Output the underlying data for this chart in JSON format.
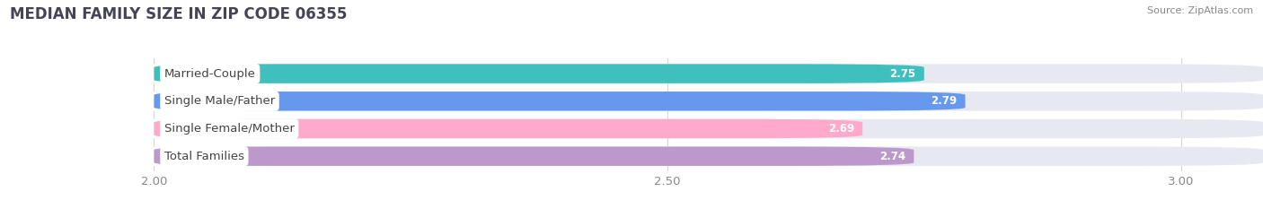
{
  "title": "MEDIAN FAMILY SIZE IN ZIP CODE 06355",
  "source": "Source: ZipAtlas.com",
  "categories": [
    "Married-Couple",
    "Single Male/Father",
    "Single Female/Mother",
    "Total Families"
  ],
  "values": [
    2.75,
    2.79,
    2.69,
    2.74
  ],
  "bar_colors": [
    "#40bfbf",
    "#6699ee",
    "#ffaacc",
    "#bb99cc"
  ],
  "bar_bg_color": "#e8e8f0",
  "fig_bg_color": "#ffffff",
  "xlim_min": 1.85,
  "xlim_max": 3.08,
  "xmin": 2.0,
  "xticks": [
    2.0,
    2.5,
    3.0
  ],
  "figsize": [
    14.06,
    2.33
  ],
  "dpi": 100,
  "label_font_size": 9.5,
  "value_font_size": 8.5,
  "title_font_size": 12,
  "source_font_size": 8,
  "bar_height": 0.7,
  "bar_gap": 0.15
}
